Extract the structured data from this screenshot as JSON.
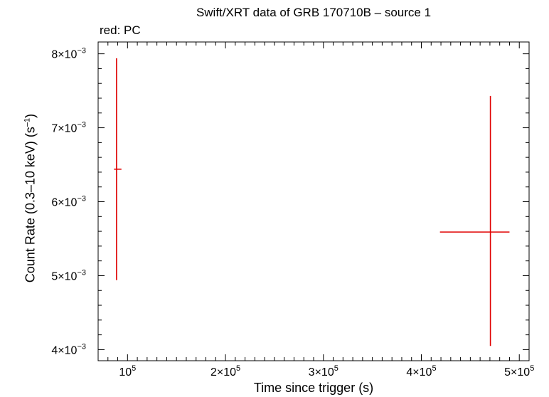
{
  "chart_data": {
    "type": "scatter",
    "title": "Swift/XRT data of GRB 170710B – source 1",
    "subtitle": "red: PC",
    "xlabel": "Time since trigger (s)",
    "ylabel_main": "Count Rate (0.3–10 keV) (s",
    "ylabel_sup": "–1",
    "ylabel_end": ")",
    "xlim": [
      70000,
      510000
    ],
    "ylim": [
      0.00385,
      0.00816
    ],
    "x_ticks": [
      {
        "value": 100000,
        "mantissa": "",
        "exp": "5"
      },
      {
        "value": 200000,
        "mantissa": "2",
        "exp": "5"
      },
      {
        "value": 300000,
        "mantissa": "3",
        "exp": "5"
      },
      {
        "value": 400000,
        "mantissa": "4",
        "exp": "5"
      },
      {
        "value": 500000,
        "mantissa": "5",
        "exp": "5"
      }
    ],
    "y_ticks": [
      {
        "value": 0.004,
        "mantissa": "4",
        "exp": "−3"
      },
      {
        "value": 0.005,
        "mantissa": "5",
        "exp": "−3"
      },
      {
        "value": 0.006,
        "mantissa": "6",
        "exp": "−3"
      },
      {
        "value": 0.007,
        "mantissa": "7",
        "exp": "−3"
      },
      {
        "value": 0.008,
        "mantissa": "8",
        "exp": "−3"
      }
    ],
    "grid": false,
    "series": [
      {
        "color": "#e00000",
        "points": [
          {
            "x": 88800,
            "y": 0.00644,
            "xerr_low": 2600,
            "xerr_high": 5000,
            "yerr_low": 0.0015,
            "yerr_high": 0.0015
          },
          {
            "x": 470500,
            "y": 0.00559,
            "xerr_low": 51500,
            "xerr_high": 19500,
            "yerr_low": 0.00154,
            "yerr_high": 0.00184
          }
        ]
      }
    ]
  }
}
